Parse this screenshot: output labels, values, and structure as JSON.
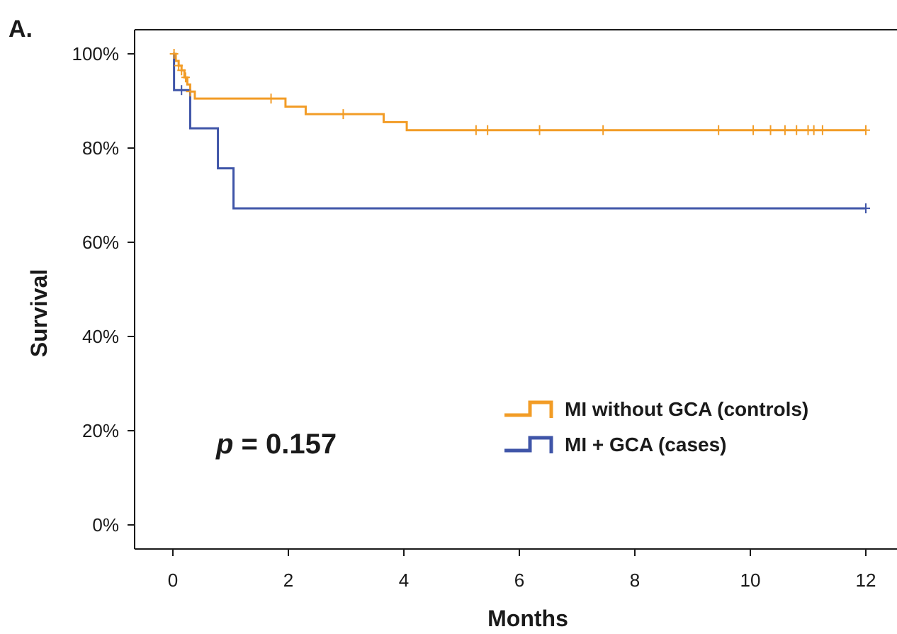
{
  "panel_label": "A.",
  "chart_data": {
    "type": "line",
    "subtype": "kaplan-meier step",
    "xlabel": "Months",
    "ylabel": "Survival",
    "xlim": [
      0,
      12
    ],
    "ylim": [
      0,
      100
    ],
    "x_ticks": [
      0,
      2,
      4,
      6,
      8,
      10,
      12
    ],
    "x_tick_labels": [
      "0",
      "2",
      "4",
      "6",
      "8",
      "10",
      "12"
    ],
    "y_ticks": [
      0,
      20,
      40,
      60,
      80,
      100
    ],
    "y_tick_labels": [
      "0%",
      "20%",
      "40%",
      "60%",
      "80%",
      "100%"
    ],
    "grid": false,
    "legend_position": "right",
    "annotation": {
      "prefix": "p",
      "text": " = 0.157"
    },
    "series": [
      {
        "name": "MI without GCA (controls)",
        "color": "#f29c26",
        "steps": [
          [
            0,
            100
          ],
          [
            0.05,
            98.5
          ],
          [
            0.1,
            97.5
          ],
          [
            0.15,
            96.5
          ],
          [
            0.2,
            95
          ],
          [
            0.25,
            93.5
          ],
          [
            0.3,
            92
          ],
          [
            0.38,
            90.5
          ],
          [
            1.95,
            88.8
          ],
          [
            2.3,
            87.2
          ],
          [
            3.65,
            85.5
          ],
          [
            4.05,
            83.8
          ],
          [
            12,
            83.8
          ]
        ],
        "censored": [
          [
            0.02,
            100
          ],
          [
            0.1,
            97.5
          ],
          [
            0.15,
            96.5
          ],
          [
            0.22,
            95
          ],
          [
            0.3,
            92
          ],
          [
            1.7,
            90.5
          ],
          [
            2.95,
            87.2
          ],
          [
            5.25,
            83.8
          ],
          [
            5.45,
            83.8
          ],
          [
            6.35,
            83.8
          ],
          [
            7.45,
            83.8
          ],
          [
            9.45,
            83.8
          ],
          [
            10.05,
            83.8
          ],
          [
            10.35,
            83.8
          ],
          [
            10.6,
            83.8
          ],
          [
            10.8,
            83.8
          ],
          [
            11.0,
            83.8
          ],
          [
            11.1,
            83.8
          ],
          [
            11.25,
            83.8
          ],
          [
            12,
            83.8
          ]
        ]
      },
      {
        "name": "MI + GCA (cases)",
        "color": "#3f55a8",
        "steps": [
          [
            0,
            100
          ],
          [
            0.02,
            92.3
          ],
          [
            0.3,
            84.2
          ],
          [
            0.78,
            75.7
          ],
          [
            1.05,
            67.2
          ],
          [
            12,
            67.2
          ]
        ],
        "censored": [
          [
            0.15,
            92.3
          ],
          [
            12,
            67.2
          ]
        ]
      }
    ]
  }
}
